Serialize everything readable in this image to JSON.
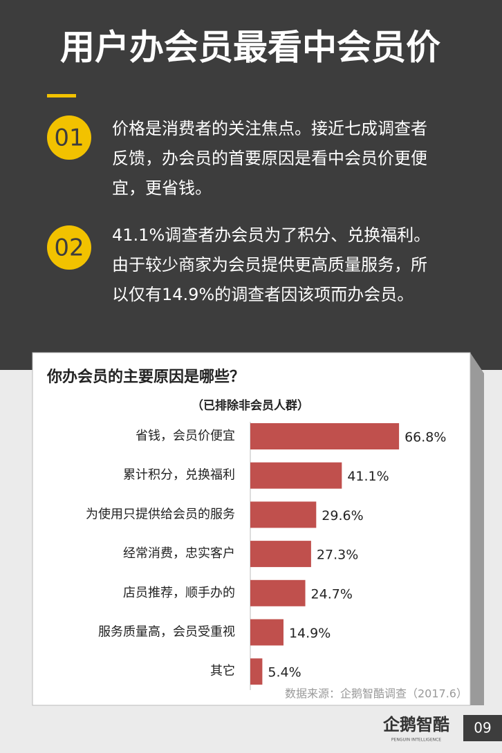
{
  "header": {
    "title": "用户办会员最看中会员价"
  },
  "points": [
    {
      "number": "01",
      "lines": [
        "价格是消费者的关注焦点。接近七成调查者",
        "反馈，办会员的首要原因是看中会员价更便",
        "宜，更省钱。"
      ]
    },
    {
      "number": "02",
      "lines": [
        "41.1%调查者办会员为了积分、兑换福利。",
        "由于较少商家为会员提供更高质量服务，所",
        "以仅有14.9%的调查者因该项而办会员。"
      ]
    }
  ],
  "chart_data": {
    "type": "bar",
    "orientation": "horizontal",
    "title": "你办会员的主要原因是哪些？",
    "subtitle": "（已排除非会员人群）",
    "categories": [
      "省钱，会员价便宜",
      "累计积分，兑换福利",
      "为使用只提供给会员的服务",
      "经常消费，忠实客户",
      "店员推荐，顺手办的",
      "服务质量高，会员受重视",
      "其它"
    ],
    "values": [
      66.8,
      41.1,
      29.6,
      27.3,
      24.7,
      14.9,
      5.4
    ],
    "value_labels": [
      "66.8%",
      "41.1%",
      "29.6%",
      "27.3%",
      "24.7%",
      "14.9%",
      "5.4%"
    ],
    "color": "#c0504d",
    "source": "数据来源：企鹅智酷调查（2017.6）"
  },
  "footer": {
    "logo": "企鹅智酷",
    "logo_sub": "PENGUIN INTELLIGENCE",
    "page": "09"
  }
}
